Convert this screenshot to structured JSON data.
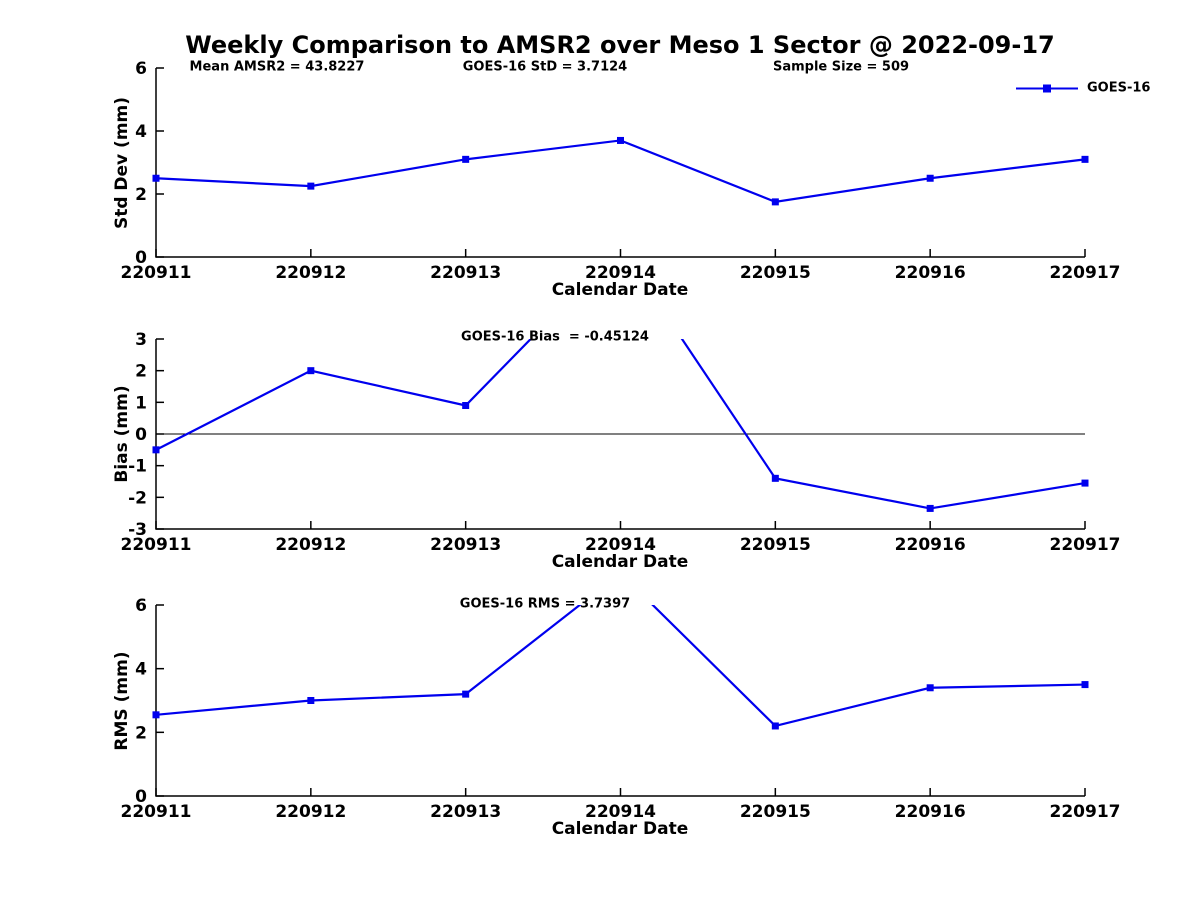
{
  "title": "Weekly Comparison to AMSR2 over Meso 1 Sector @ 2022-09-17",
  "legend": {
    "label": "GOES-16"
  },
  "colors": {
    "series": "#0000EE",
    "axis": "#000000",
    "zero_line": "#000000",
    "text": "#000000",
    "background": "#FFFFFF"
  },
  "chart_data": [
    {
      "type": "line",
      "categories": [
        "220911",
        "220912",
        "220913",
        "220914",
        "220915",
        "220916",
        "220917"
      ],
      "series": [
        {
          "name": "GOES-16",
          "values": [
            2.5,
            2.25,
            3.1,
            3.7,
            1.75,
            2.5,
            3.1
          ]
        }
      ],
      "xlabel": "Calendar Date",
      "ylabel": "Std Dev (mm)",
      "ylim": [
        0,
        6
      ],
      "yticks": [
        0,
        2,
        4,
        6
      ],
      "grid": false,
      "legend_position": "top-right",
      "annotations": [
        "Mean AMSR2 = 43.8227",
        "GOES-16 StD = 3.7124",
        "Sample Size = 509"
      ]
    },
    {
      "type": "line",
      "categories": [
        "220911",
        "220912",
        "220913",
        "220914",
        "220915",
        "220916",
        "220917"
      ],
      "series": [
        {
          "name": "GOES-16",
          "values": [
            -0.5,
            2.0,
            0.9,
            5.9,
            -1.4,
            -2.35,
            -1.55
          ]
        }
      ],
      "xlabel": "Calendar Date",
      "ylabel": "Bias (mm)",
      "ylim": [
        -3,
        3
      ],
      "yticks": [
        -3,
        -2,
        -1,
        0,
        1,
        2,
        3
      ],
      "zero_line": true,
      "grid": false,
      "clipped_categories": [
        "220914"
      ],
      "annotations": [
        "GOES-16 Bias  = -0.45124"
      ]
    },
    {
      "type": "line",
      "categories": [
        "220911",
        "220912",
        "220913",
        "220914",
        "220915",
        "220916",
        "220917"
      ],
      "series": [
        {
          "name": "GOES-16",
          "values": [
            2.55,
            3.0,
            3.2,
            7.0,
            2.2,
            3.4,
            3.5
          ]
        }
      ],
      "xlabel": "Calendar Date",
      "ylabel": "RMS (mm)",
      "ylim": [
        0,
        6
      ],
      "yticks": [
        0,
        2,
        4,
        6
      ],
      "grid": false,
      "clipped_categories": [
        "220914"
      ],
      "annotations": [
        "GOES-16 RMS = 3.7397"
      ]
    }
  ]
}
